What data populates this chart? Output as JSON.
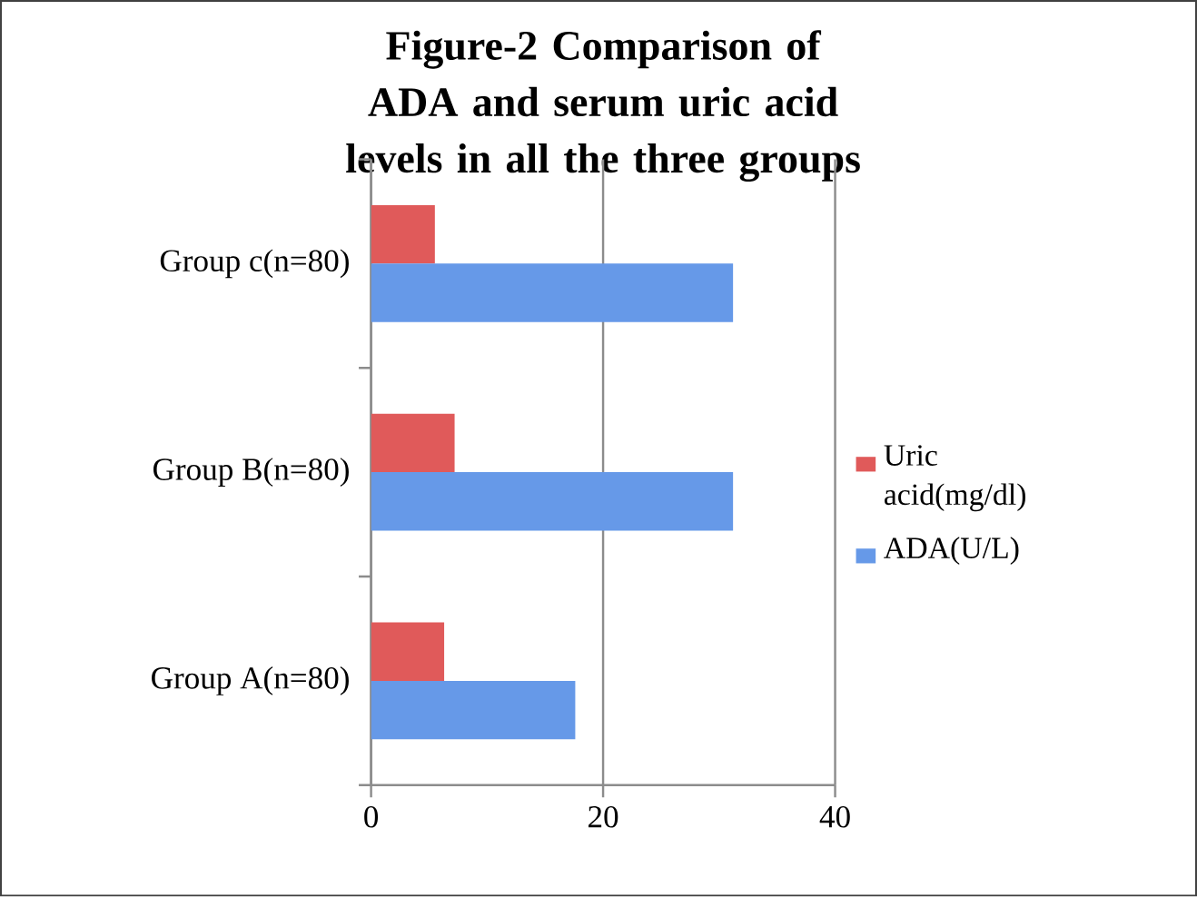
{
  "chart_data": {
    "type": "bar",
    "orientation": "horizontal",
    "title": "Figure-2 Comparison of ADA and serum uric acid levels in all the three groups",
    "categories": [
      "Group c(n=80)",
      "Group B(n=80)",
      "Group A(n=80)"
    ],
    "series": [
      {
        "name": "Uric acid(mg/dl)",
        "color": "#e05a5a",
        "values": [
          5.5,
          7.2,
          6.3
        ]
      },
      {
        "name": "ADA(U/L)",
        "color": "#6699e8",
        "values": [
          31.2,
          31.2,
          17.6
        ]
      }
    ],
    "xlim": [
      0,
      40
    ],
    "xticks": [
      0,
      20,
      40
    ],
    "grid": "x",
    "legend": "right"
  }
}
